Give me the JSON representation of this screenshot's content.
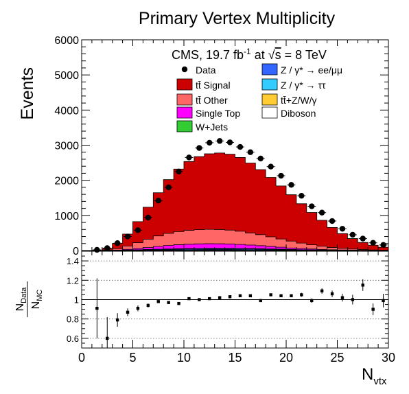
{
  "chart_data": {
    "title": "Primary Vertex Multiplicity",
    "ylabel": "Events",
    "xlabel_base": "N",
    "xlabel_sub": "vtx",
    "cms_label": {
      "prefix": "CMS, 19.7 fb",
      "lumi_exp": "-1",
      "at": " at ",
      "sqrt_s": "s",
      "energy": " =  8 TeV"
    },
    "x_range": [
      0,
      30
    ],
    "x_ticks": [
      "0",
      "5",
      "10",
      "15",
      "20",
      "25",
      "30"
    ],
    "top": {
      "type": "stacked-histogram",
      "ylim": [
        0,
        6000
      ],
      "y_ticks": [
        "0",
        "1000",
        "2000",
        "3000",
        "4000",
        "5000",
        "6000"
      ],
      "bin_edges": [
        0,
        1,
        2,
        3,
        4,
        5,
        6,
        7,
        8,
        9,
        10,
        11,
        12,
        13,
        14,
        15,
        16,
        17,
        18,
        19,
        20,
        21,
        22,
        23,
        24,
        25,
        26,
        27,
        28,
        29,
        30
      ],
      "series": [
        {
          "name": "Diboson",
          "key": "diboson",
          "color": "#ffffff",
          "values": [
            0,
            0,
            0,
            0,
            1,
            2,
            3,
            4,
            4,
            5,
            5,
            5,
            5,
            5,
            5,
            5,
            5,
            5,
            4,
            4,
            3,
            3,
            2,
            2,
            1,
            1,
            1,
            1,
            0,
            0
          ]
        },
        {
          "name": "tt̄+Z/W/γ",
          "key": "ttv",
          "color": "#ffcc33",
          "values": [
            0,
            0,
            0,
            0,
            1,
            1,
            2,
            2,
            3,
            3,
            3,
            4,
            4,
            4,
            4,
            4,
            3,
            3,
            3,
            3,
            2,
            2,
            2,
            1,
            1,
            1,
            1,
            0,
            0,
            0
          ]
        },
        {
          "name": "Z / γ* → ττ",
          "key": "ztautau",
          "color": "#33ccff",
          "values": [
            0,
            0,
            1,
            2,
            4,
            6,
            9,
            11,
            13,
            15,
            17,
            18,
            19,
            19,
            19,
            18,
            17,
            15,
            13,
            11,
            9,
            7,
            5,
            4,
            3,
            2,
            1,
            1,
            1,
            0
          ]
        },
        {
          "name": "Z / γ* → ee/μμ",
          "key": "zll",
          "color": "#3366ff",
          "values": [
            0,
            0,
            1,
            3,
            6,
            9,
            12,
            15,
            18,
            20,
            22,
            24,
            25,
            25,
            25,
            24,
            22,
            20,
            18,
            15,
            12,
            10,
            8,
            6,
            4,
            3,
            2,
            1,
            1,
            0
          ]
        },
        {
          "name": "W+Jets",
          "key": "wjets",
          "color": "#33cc33",
          "values": [
            0,
            0,
            0,
            1,
            2,
            3,
            4,
            5,
            6,
            7,
            8,
            8,
            9,
            9,
            9,
            8,
            8,
            7,
            6,
            5,
            4,
            3,
            3,
            2,
            1,
            1,
            1,
            0,
            0,
            0
          ]
        },
        {
          "name": "Single Top",
          "key": "singletop",
          "color": "#ff00ff",
          "values": [
            0,
            0,
            2,
            8,
            20,
            38,
            58,
            80,
            100,
            115,
            125,
            130,
            132,
            130,
            125,
            115,
            102,
            88,
            72,
            57,
            44,
            33,
            24,
            17,
            12,
            8,
            5,
            3,
            2,
            1
          ]
        },
        {
          "name": "tt̄ Other",
          "key": "ttother",
          "color": "#ff6666",
          "values": [
            0,
            2,
            12,
            40,
            95,
            165,
            235,
            300,
            345,
            375,
            395,
            405,
            410,
            405,
            395,
            375,
            345,
            315,
            275,
            235,
            195,
            155,
            120,
            90,
            65,
            45,
            30,
            20,
            13,
            8
          ]
        },
        {
          "name": "tt̄ Signal",
          "key": "ttsignal",
          "color": "#cc0000",
          "values": [
            0,
            6,
            45,
            150,
            340,
            600,
            910,
            1230,
            1530,
            1780,
            1960,
            2080,
            2150,
            2180,
            2160,
            2100,
            1990,
            1850,
            1690,
            1510,
            1320,
            1120,
            920,
            740,
            570,
            420,
            300,
            205,
            135,
            85
          ]
        }
      ],
      "data": {
        "name": "Data",
        "x": [
          1.5,
          2.5,
          3.5,
          4.5,
          5.5,
          6.5,
          7.5,
          8.5,
          9.5,
          10.5,
          11.5,
          12.5,
          13.5,
          14.5,
          15.5,
          16.5,
          17.5,
          18.5,
          19.5,
          20.5,
          21.5,
          22.5,
          23.5,
          24.5,
          25.5,
          26.5,
          27.5,
          28.5,
          29.5
        ],
        "y": [
          20,
          70,
          210,
          400,
          580,
          940,
          1420,
          1800,
          2250,
          2650,
          2920,
          3070,
          3120,
          3080,
          2950,
          2800,
          2620,
          2390,
          2130,
          1870,
          1560,
          1260,
          1080,
          840,
          620,
          450,
          340,
          220,
          160
        ]
      },
      "legend": [
        {
          "label": "Data",
          "key": "data",
          "marker": "dot"
        },
        {
          "label": "Z / γ* → ee/μμ",
          "key": "zll",
          "marker": "box"
        },
        {
          "label": "tt̄ Signal",
          "key": "ttsignal",
          "marker": "box"
        },
        {
          "label": "Z / γ* → ττ",
          "key": "ztautau",
          "marker": "box"
        },
        {
          "label": "tt̄ Other",
          "key": "ttother",
          "marker": "box"
        },
        {
          "label": "tt̄+Z/W/γ",
          "key": "ttv",
          "marker": "box"
        },
        {
          "label": "Single Top",
          "key": "singletop",
          "marker": "box"
        },
        {
          "label": "Diboson",
          "key": "diboson",
          "marker": "box"
        },
        {
          "label": "W+Jets",
          "key": "wjets",
          "marker": "box"
        }
      ]
    },
    "ratio": {
      "type": "scatter",
      "ylabel_num": "N",
      "ylabel_num_sub": "Data",
      "ylabel_den": "N",
      "ylabel_den_sub": "MC",
      "ylim": [
        0.5,
        1.5
      ],
      "y_ticks": [
        {
          "v": 0.6,
          "label": "0.6"
        },
        {
          "v": 0.8,
          "label": "0.8"
        },
        {
          "v": 1.0,
          "label": "1"
        },
        {
          "v": 1.2,
          "label": "1.2"
        },
        {
          "v": 1.4,
          "label": "1.4"
        }
      ],
      "x": [
        1.5,
        2.5,
        3.5,
        4.5,
        5.5,
        6.5,
        7.5,
        8.5,
        9.5,
        10.5,
        11.5,
        12.5,
        13.5,
        14.5,
        15.5,
        16.5,
        17.5,
        18.5,
        19.5,
        20.5,
        21.5,
        22.5,
        23.5,
        24.5,
        25.5,
        26.5,
        27.5,
        28.5,
        29.5
      ],
      "y": [
        0.91,
        0.6,
        0.79,
        0.87,
        0.91,
        0.94,
        0.98,
        0.97,
        0.96,
        1.01,
        1.0,
        1.01,
        1.02,
        1.03,
        1.04,
        1.04,
        0.99,
        1.05,
        1.04,
        1.04,
        1.05,
        0.99,
        1.09,
        1.06,
        1.02,
        1.0,
        1.15,
        0.9,
        0.99
      ],
      "err": [
        0.31,
        0.22,
        0.07,
        0.04,
        0.03,
        0.02,
        0.015,
        0.012,
        0.012,
        0.01,
        0.01,
        0.01,
        0.01,
        0.01,
        0.01,
        0.01,
        0.01,
        0.012,
        0.015,
        0.015,
        0.02,
        0.022,
        0.028,
        0.034,
        0.04,
        0.05,
        0.06,
        0.06,
        0.07
      ],
      "reference_line": 1.0
    }
  }
}
